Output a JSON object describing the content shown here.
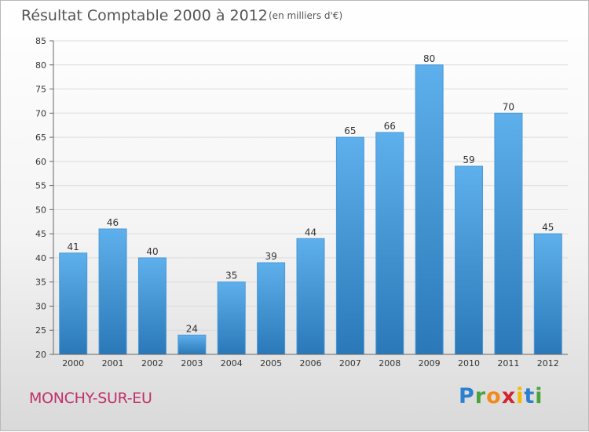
{
  "header": {
    "title": "Résultat Comptable 2000 à 2012",
    "unit": "(en milliers d'€)"
  },
  "footer": {
    "city": "MONCHY-SUR-EU",
    "logo_letters": [
      "P",
      "r",
      "o",
      "x",
      "i",
      "t",
      "i"
    ],
    "logo_colors": [
      "#2e7fd0",
      "#4aa33b",
      "#f28a1c",
      "#d0262f",
      "#f5b800",
      "#2e7fd0",
      "#4aa33b"
    ]
  },
  "colors": {
    "bar_top": "#5eb0ec",
    "bar_bottom": "#2a78b8"
  },
  "chart_data": {
    "type": "bar",
    "title": "Résultat Comptable 2000 à 2012",
    "categories": [
      "2000",
      "2001",
      "2002",
      "2003",
      "2004",
      "2005",
      "2006",
      "2007",
      "2008",
      "2009",
      "2010",
      "2011",
      "2012"
    ],
    "values": [
      41,
      46,
      40,
      24,
      35,
      39,
      44,
      65,
      66,
      80,
      59,
      70,
      45
    ],
    "ylim": [
      20,
      85
    ],
    "yticks": [
      20,
      25,
      30,
      35,
      40,
      45,
      50,
      55,
      60,
      65,
      70,
      75,
      80,
      85
    ],
    "grid": true,
    "xlabel": "",
    "ylabel": ""
  }
}
